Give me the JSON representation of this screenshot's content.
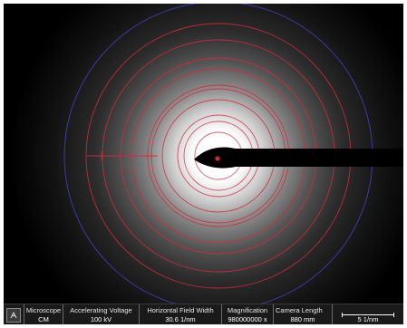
{
  "colors": {
    "background": "#000000",
    "ring_red": "#d42a36",
    "ring_blue": "#3a3aa8",
    "beam_stop": "#000000",
    "databar_bg": "#1a1a1a"
  },
  "image": {
    "content": "electron diffraction ring pattern",
    "icons": [
      "beam-stop",
      "center-marker"
    ]
  },
  "databar": {
    "microscope": {
      "label": "Microscope",
      "value": "CM"
    },
    "accelerating_voltage": {
      "label": "Accelerating Voltage",
      "value": "100 kV"
    },
    "horizontal_field_width": {
      "label": "Horizontal Field Width",
      "value": "30.6 1/nm"
    },
    "magnification": {
      "label": "Magnification",
      "value": "980000000 x"
    },
    "camera_length": {
      "label": "Camera Length",
      "value": "880 mm"
    },
    "scale_bar": {
      "label": "5 1/nm"
    }
  }
}
